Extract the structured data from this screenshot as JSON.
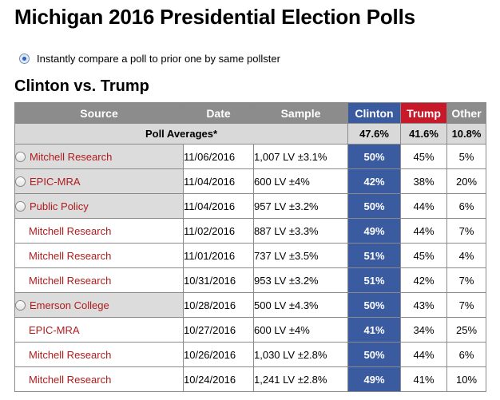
{
  "page_title": "Michigan 2016 Presidential Election Polls",
  "compare_option": "Instantly compare a poll to prior one by same pollster",
  "section_title": "Clinton vs. Trump",
  "columns": [
    "Source",
    "Date",
    "Sample",
    "Clinton",
    "Trump",
    "Other"
  ],
  "colors": {
    "clinton": "#3a5ba0",
    "trump": "#c8192a",
    "header": "#8c8c8c",
    "source_link": "#b01c1c"
  },
  "averages": {
    "label": "Poll Averages*",
    "clinton": "47.6%",
    "trump": "41.6%",
    "other": "10.8%"
  },
  "rows": [
    {
      "source": "Mitchell Research",
      "date": "11/06/2016",
      "sample": "1,007 LV ±3.1%",
      "clinton": "50%",
      "trump": "45%",
      "other": "5%",
      "has_radio": true
    },
    {
      "source": "EPIC-MRA",
      "date": "11/04/2016",
      "sample": "600 LV ±4%",
      "clinton": "42%",
      "trump": "38%",
      "other": "20%",
      "has_radio": true
    },
    {
      "source": "Public Policy",
      "date": "11/04/2016",
      "sample": "957 LV ±3.2%",
      "clinton": "50%",
      "trump": "44%",
      "other": "6%",
      "has_radio": true
    },
    {
      "source": "Mitchell Research",
      "date": "11/02/2016",
      "sample": "887 LV ±3.3%",
      "clinton": "49%",
      "trump": "44%",
      "other": "7%",
      "has_radio": false
    },
    {
      "source": "Mitchell Research",
      "date": "11/01/2016",
      "sample": "737 LV ±3.5%",
      "clinton": "51%",
      "trump": "45%",
      "other": "4%",
      "has_radio": false
    },
    {
      "source": "Mitchell Research",
      "date": "10/31/2016",
      "sample": "953 LV ±3.2%",
      "clinton": "51%",
      "trump": "42%",
      "other": "7%",
      "has_radio": false
    },
    {
      "source": "Emerson College",
      "date": "10/28/2016",
      "sample": "500 LV ±4.3%",
      "clinton": "50%",
      "trump": "43%",
      "other": "7%",
      "has_radio": true
    },
    {
      "source": "EPIC-MRA",
      "date": "10/27/2016",
      "sample": "600 LV ±4%",
      "clinton": "41%",
      "trump": "34%",
      "other": "25%",
      "has_radio": false
    },
    {
      "source": "Mitchell Research",
      "date": "10/26/2016",
      "sample": "1,030 LV ±2.8%",
      "clinton": "50%",
      "trump": "44%",
      "other": "6%",
      "has_radio": false
    },
    {
      "source": "Mitchell Research",
      "date": "10/24/2016",
      "sample": "1,241 LV ±2.8%",
      "clinton": "49%",
      "trump": "41%",
      "other": "10%",
      "has_radio": false
    }
  ]
}
